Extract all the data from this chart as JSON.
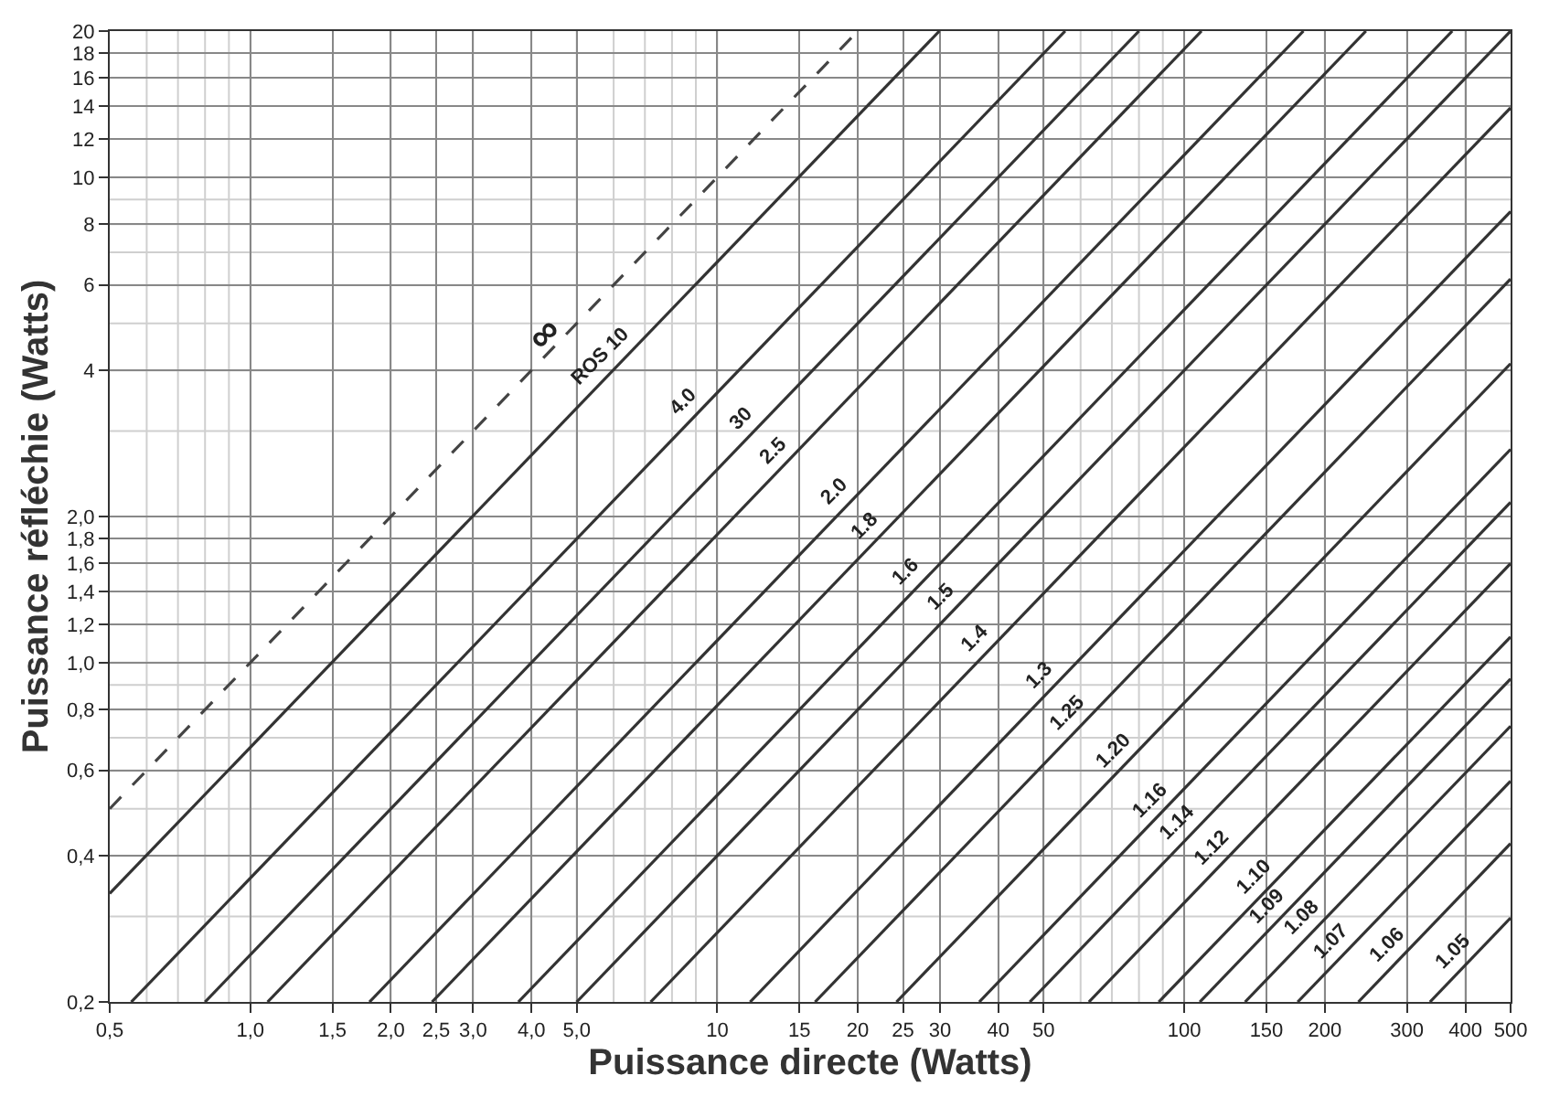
{
  "chart_data": {
    "type": "line",
    "xlabel": "Puissance directe (Watts)",
    "ylabel": "Puissance réfléchie (Watts)",
    "log": "xy",
    "grid": true,
    "xlim": [
      0.5,
      500
    ],
    "ylim": [
      0.2,
      20
    ],
    "xticks": [
      {
        "value": 0.5,
        "label": "0,5"
      },
      {
        "value": 1,
        "label": "1,0"
      },
      {
        "value": 1.5,
        "label": "1,5"
      },
      {
        "value": 2,
        "label": "2,0"
      },
      {
        "value": 2.5,
        "label": "2,5"
      },
      {
        "value": 3,
        "label": "3,0"
      },
      {
        "value": 4,
        "label": "4,0"
      },
      {
        "value": 5,
        "label": "5,0"
      },
      10,
      15,
      20,
      25,
      30,
      40,
      50,
      100,
      150,
      200,
      300,
      400,
      500
    ],
    "yticks": [
      {
        "value": 0.2,
        "label": "0,2"
      },
      {
        "value": 0.4,
        "label": "0,4"
      },
      {
        "value": 0.6,
        "label": "0,6"
      },
      {
        "value": 0.8,
        "label": "0,8"
      },
      {
        "value": 1,
        "label": "1,0"
      },
      {
        "value": 1.2,
        "label": "1,2"
      },
      {
        "value": 1.4,
        "label": "1,4"
      },
      {
        "value": 1.6,
        "label": "1,6"
      },
      {
        "value": 1.8,
        "label": "1,8"
      },
      {
        "value": 2,
        "label": "2,0"
      },
      4,
      6,
      8,
      10,
      12,
      14,
      16,
      18,
      20
    ],
    "series": [
      {
        "color": "#444444",
        "line_style": "dashed",
        "x": [
          0.5,
          20
        ],
        "values": [
          0.5,
          20
        ]
      },
      {
        "color": "#333333",
        "x": [
          0.5,
          29.9
        ],
        "values": [
          0.3345,
          20
        ]
      },
      {
        "color": "#333333",
        "x": [
          0.556,
          55.6
        ],
        "values": [
          0.2,
          20
        ]
      },
      {
        "color": "#333333",
        "x": [
          0.8,
          80
        ],
        "values": [
          0.2,
          20
        ]
      },
      {
        "color": "#333333",
        "x": [
          1.089,
          108.9
        ],
        "values": [
          0.2,
          20
        ]
      },
      {
        "color": "#333333",
        "x": [
          1.8,
          180
        ],
        "values": [
          0.2,
          20
        ]
      },
      {
        "color": "#333333",
        "x": [
          2.45,
          245
        ],
        "values": [
          0.2,
          20
        ]
      },
      {
        "color": "#333333",
        "x": [
          3.75,
          375
        ],
        "values": [
          0.2,
          20
        ]
      },
      {
        "color": "#333333",
        "x": [
          5,
          500
        ],
        "values": [
          0.2,
          20
        ]
      },
      {
        "color": "#333333",
        "x": [
          7.2,
          500
        ],
        "values": [
          0.2,
          13.9
        ]
      },
      {
        "color": "#333333",
        "x": [
          11.76,
          500
        ],
        "values": [
          0.2,
          8.5
        ]
      },
      {
        "color": "#333333",
        "x": [
          16.2,
          500
        ],
        "values": [
          0.2,
          6.17
        ]
      },
      {
        "color": "#333333",
        "x": [
          24.2,
          500
        ],
        "values": [
          0.2,
          4.13
        ]
      },
      {
        "color": "#333333",
        "x": [
          36.4,
          500
        ],
        "values": [
          0.2,
          2.75
        ]
      },
      {
        "color": "#333333",
        "x": [
          46.7,
          500
        ],
        "values": [
          0.2,
          2.14
        ]
      },
      {
        "color": "#333333",
        "x": [
          62.5,
          500
        ],
        "values": [
          0.2,
          1.6
        ]
      },
      {
        "color": "#333333",
        "x": [
          88.2,
          500
        ],
        "values": [
          0.2,
          1.13
        ]
      },
      {
        "color": "#333333",
        "x": [
          108,
          500
        ],
        "values": [
          0.2,
          0.926
        ]
      },
      {
        "color": "#333333",
        "x": [
          135,
          500
        ],
        "values": [
          0.2,
          0.74
        ]
      },
      {
        "color": "#333333",
        "x": [
          175,
          500
        ],
        "values": [
          0.2,
          0.57
        ]
      },
      {
        "color": "#333333",
        "x": [
          236,
          500
        ],
        "values": [
          0.2,
          0.424
        ]
      },
      {
        "color": "#333333",
        "x": [
          336,
          500
        ],
        "values": [
          0.2,
          0.298
        ]
      }
    ],
    "annotations": [
      {
        "text": "∞",
        "x": 4.5,
        "y": 4.5
      },
      {
        "text": "ROS 10",
        "x": 6,
        "y": 4.01
      },
      {
        "text": "4.0",
        "x": 9,
        "y": 3.24
      },
      {
        "text": "30",
        "x": 12,
        "y": 3.0
      },
      {
        "text": "2.5",
        "x": 14,
        "y": 2.57
      },
      {
        "text": "2.0",
        "x": 19,
        "y": 2.11
      },
      {
        "text": "1.8",
        "x": 22,
        "y": 1.8
      },
      {
        "text": "1.6",
        "x": 27,
        "y": 1.44
      },
      {
        "text": "1.5",
        "x": 32,
        "y": 1.28
      },
      {
        "text": "1.4",
        "x": 38,
        "y": 1.06
      },
      {
        "text": "1.3",
        "x": 52,
        "y": 0.88
      },
      {
        "text": "1.25",
        "x": 60,
        "y": 0.74
      },
      {
        "text": "1.20",
        "x": 75,
        "y": 0.62
      },
      {
        "text": "1.16",
        "x": 90,
        "y": 0.49
      },
      {
        "text": "1.14",
        "x": 103,
        "y": 0.44
      },
      {
        "text": "1.12",
        "x": 122,
        "y": 0.39
      },
      {
        "text": "1.10",
        "x": 150,
        "y": 0.34
      },
      {
        "text": "1.09",
        "x": 160,
        "y": 0.296
      },
      {
        "text": "1.08",
        "x": 190,
        "y": 0.281
      },
      {
        "text": "1.07",
        "x": 220,
        "y": 0.251
      },
      {
        "text": "1.06",
        "x": 290,
        "y": 0.246
      },
      {
        "text": "1.05",
        "x": 400,
        "y": 0.238
      }
    ]
  }
}
